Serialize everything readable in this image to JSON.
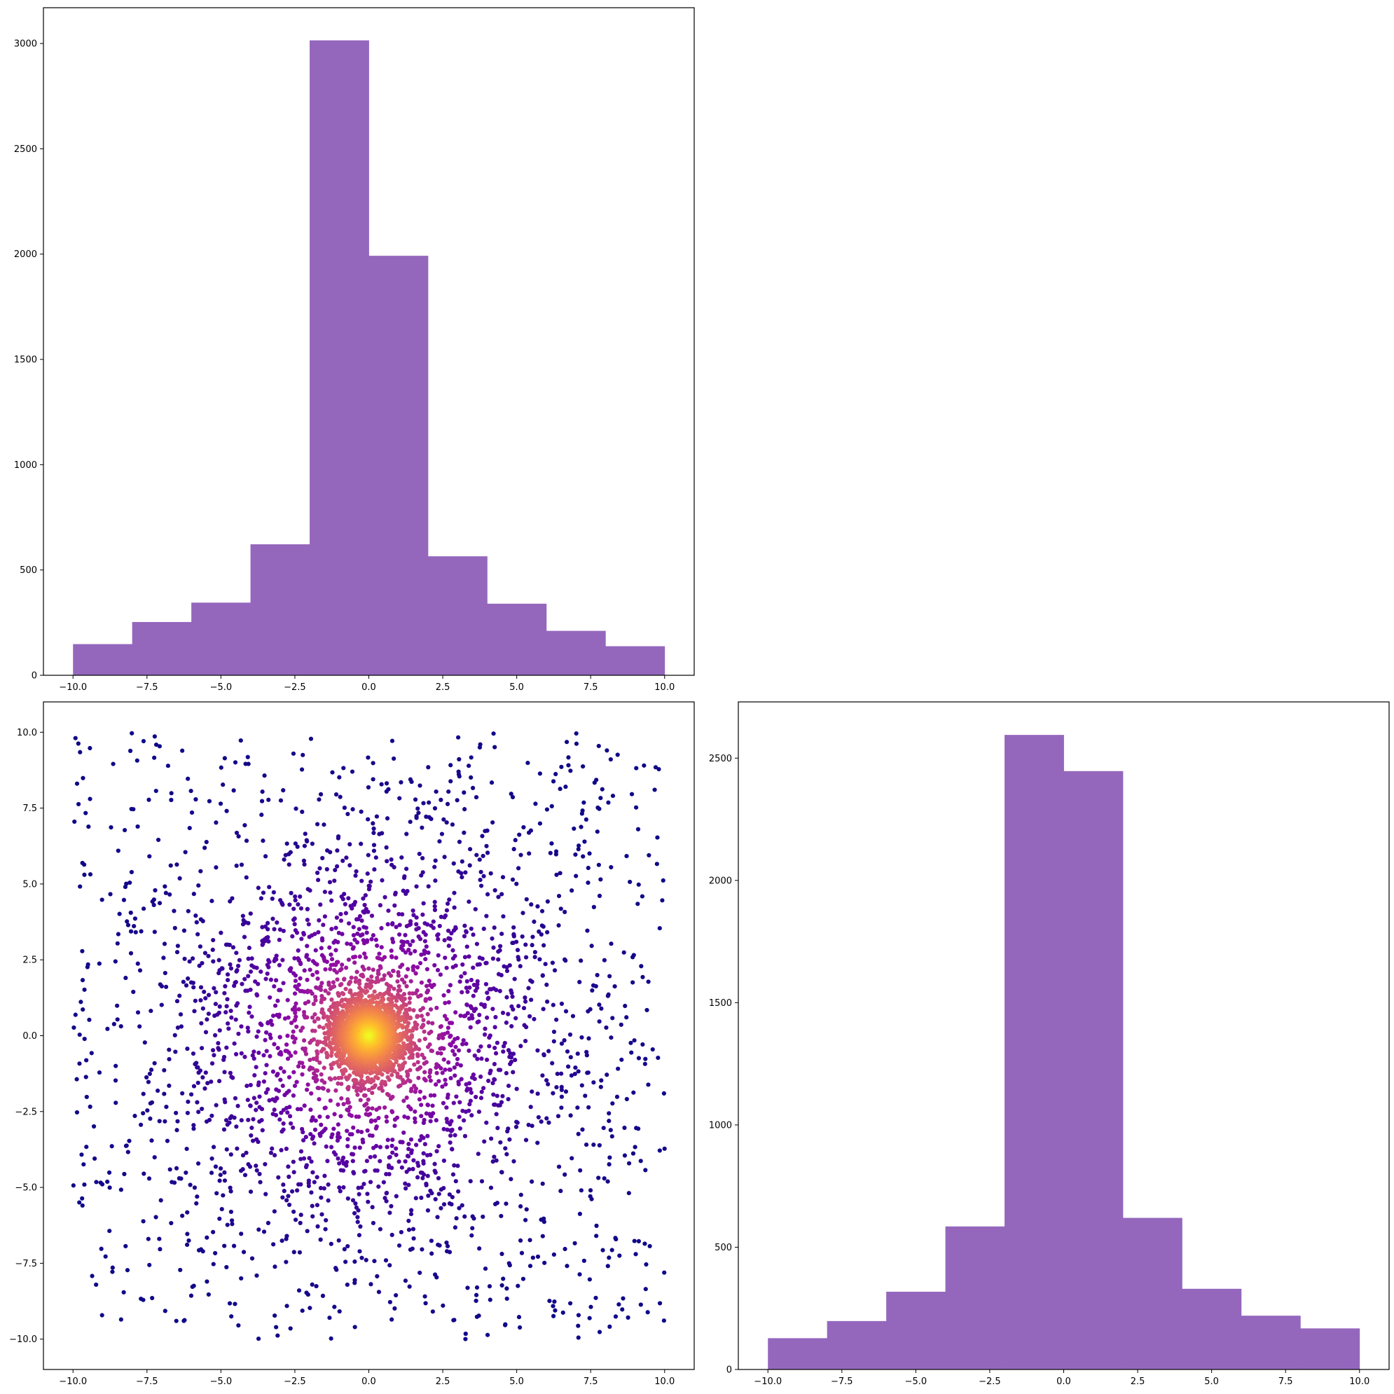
{
  "chart_data": [
    {
      "panel": "top-left",
      "type": "bar",
      "subtype": "histogram",
      "title": "",
      "xlabel": "",
      "ylabel": "",
      "bin_edges": [
        -10,
        -8,
        -6,
        -4,
        -2,
        0,
        2,
        4,
        6,
        8,
        10
      ],
      "values": [
        148,
        253,
        345,
        622,
        3015,
        1992,
        565,
        340,
        211,
        138
      ],
      "xlim": [
        -11,
        11
      ],
      "ylim": [
        0,
        3170
      ],
      "xticks": [
        -10,
        -7.5,
        -5,
        -2.5,
        0,
        2.5,
        5,
        7.5,
        10
      ],
      "xtick_labels": [
        "−10.0",
        "−7.5",
        "−5.0",
        "−2.5",
        "0.0",
        "2.5",
        "5.0",
        "7.5",
        "10.0"
      ],
      "yticks": [
        0,
        500,
        1000,
        1500,
        2000,
        2500,
        3000
      ],
      "ytick_labels": [
        "0",
        "500",
        "1000",
        "1500",
        "2000",
        "2500",
        "3000"
      ],
      "grid": false,
      "color": "#9467bd"
    },
    {
      "panel": "bottom-left",
      "type": "scatter",
      "title": "",
      "xlabel": "",
      "ylabel": "",
      "description": "~5000 points, uniform on [-10,10]^2 plus a dense cluster near (0,0); colored by density with the plasma colormap",
      "n_points": 5000,
      "xlim": [
        -11,
        11
      ],
      "ylim": [
        -11,
        11
      ],
      "xticks": [
        -10,
        -7.5,
        -5,
        -2.5,
        0,
        2.5,
        5,
        7.5,
        10
      ],
      "xtick_labels": [
        "−10.0",
        "−7.5",
        "−5.0",
        "−2.5",
        "0.0",
        "2.5",
        "5.0",
        "7.5",
        "10.0"
      ],
      "yticks": [
        -10,
        -7.5,
        -5,
        -2.5,
        0,
        2.5,
        5,
        7.5,
        10
      ],
      "ytick_labels": [
        "−10.0",
        "−7.5",
        "−5.0",
        "−2.5",
        "0.0",
        "2.5",
        "5.0",
        "7.5",
        "10.0"
      ],
      "colormap": "plasma",
      "grid": false
    },
    {
      "panel": "bottom-right",
      "type": "bar",
      "subtype": "histogram",
      "title": "",
      "xlabel": "",
      "ylabel": "",
      "bin_edges": [
        -10,
        -8,
        -6,
        -4,
        -2,
        0,
        2,
        4,
        6,
        8,
        10
      ],
      "values": [
        128,
        198,
        318,
        585,
        2595,
        2447,
        620,
        330,
        220,
        168
      ],
      "xlim": [
        -11,
        11
      ],
      "ylim": [
        0,
        2730
      ],
      "xticks": [
        -10,
        -7.5,
        -5,
        -2.5,
        0,
        2.5,
        5,
        7.5,
        10
      ],
      "xtick_labels": [
        "−10.0",
        "−7.5",
        "−5.0",
        "−2.5",
        "0.0",
        "2.5",
        "5.0",
        "7.5",
        "10.0"
      ],
      "yticks": [
        0,
        500,
        1000,
        1500,
        2000,
        2500
      ],
      "ytick_labels": [
        "0",
        "500",
        "1000",
        "1500",
        "2000",
        "2500"
      ],
      "grid": false,
      "color": "#9467bd"
    }
  ]
}
